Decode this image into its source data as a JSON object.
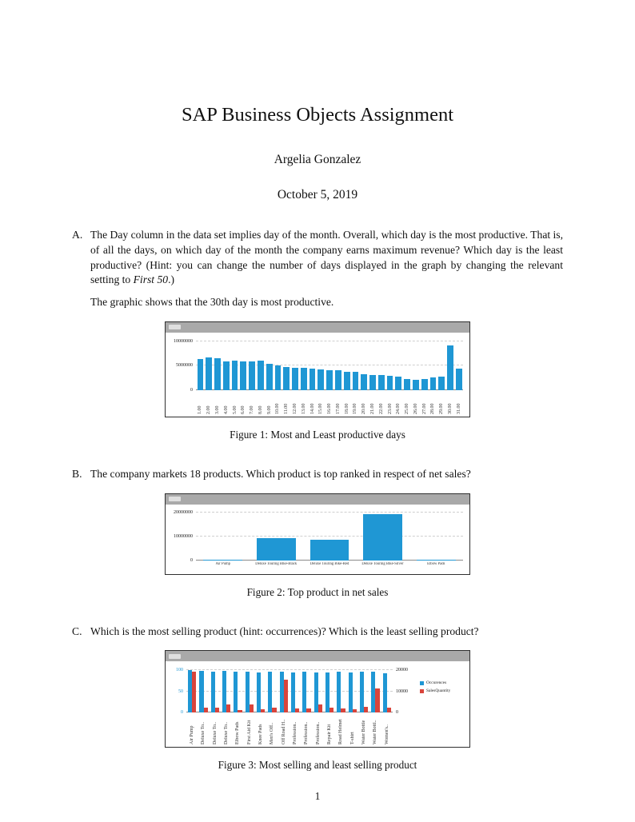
{
  "doc": {
    "title": "SAP Business Objects Assignment",
    "author": "Argelia Gonzalez",
    "date": "October 5, 2019",
    "page_number": "1"
  },
  "questions": {
    "a": {
      "label": "A.",
      "text_main": "The Day column in the data set implies day of the month. Overall, which day is the most productive. That is, of all the days, on which day of the month the company earns maximum revenue? Which day is the least productive? (Hint: you can change the number of days displayed in the graph by changing the relevant setting to ",
      "text_italic": "First 50",
      "text_end": ".)",
      "note": "The graphic shows that the 30th day is most productive."
    },
    "b": {
      "label": "B.",
      "text": "The company markets 18 products. Which product is top ranked in respect of net sales?"
    },
    "c": {
      "label": "C.",
      "text": "Which is the most selling product (hint: occurrences)? Which is the least selling product?"
    }
  },
  "figures": {
    "fig1_caption": "Figure 1: Most and Least productive days",
    "fig2_caption": "Figure 2: Top product in net sales",
    "fig3_caption": "Figure 3: Most selling and least selling product"
  },
  "colors": {
    "bar_blue": "#1f97d4",
    "bar_red": "#d9443b",
    "chart_header_gray": "#a9a9a9"
  },
  "chart_data": [
    {
      "type": "bar",
      "categories": [
        "1.00",
        "2.00",
        "3.00",
        "4.00",
        "5.00",
        "6.00",
        "7.00",
        "8.00",
        "9.00",
        "10.00",
        "11.00",
        "12.00",
        "13.00",
        "14.00",
        "15.00",
        "16.00",
        "17.00",
        "18.00",
        "19.00",
        "20.00",
        "21.00",
        "22.00",
        "23.00",
        "24.00",
        "25.00",
        "26.00",
        "27.00",
        "28.00",
        "29.00",
        "30.00",
        "31.00"
      ],
      "values": [
        6400000,
        6700000,
        6600000,
        5900000,
        6000000,
        5900000,
        5800000,
        6000000,
        5400000,
        5100000,
        4700000,
        4600000,
        4500000,
        4400000,
        4300000,
        4000000,
        4000000,
        3800000,
        3700000,
        3300000,
        3100000,
        3000000,
        2900000,
        2700000,
        2300000,
        2100000,
        2300000,
        2600000,
        2700000,
        9100000,
        4400000
      ],
      "yticks": [
        0,
        5000000,
        10000000
      ],
      "ylim": [
        0,
        10500000
      ],
      "grid": true,
      "legend_position": "none"
    },
    {
      "type": "bar",
      "categories": [
        "Air Pump",
        "Deluxe Touring Bike-Black",
        "Deluxe Touring Bike-Red",
        "Deluxe Touring Bike-Silver",
        "Elbow Pads"
      ],
      "values": [
        250000,
        9200000,
        8600000,
        19600000,
        180000
      ],
      "yticks": [
        0,
        10000000,
        20000000
      ],
      "ylim": [
        0,
        21000000
      ],
      "grid": true,
      "legend_position": "none"
    },
    {
      "type": "bar",
      "categories": [
        "Air Pump",
        "Deluxe To..",
        "Deluxe To..",
        "Deluxe To..",
        "Elbow Pads",
        "First Aid Kit",
        "Knee Pads",
        "Men's Off..",
        "Off Road H..",
        "Profession..",
        "Profession..",
        "Profession..",
        "Repair Kit",
        "Road Helmet",
        "T-shirt",
        "Water Bottle",
        "Water Bottl..",
        "Women's.."
      ],
      "series": [
        {
          "name": "Occurences",
          "axis": "left",
          "values": [
            100,
            98,
            97,
            98,
            96,
            97,
            95,
            97,
            96,
            95,
            96,
            95,
            94,
            96,
            95,
            97,
            96,
            93
          ]
        },
        {
          "name": "SalesQuantity",
          "axis": "right",
          "values": [
            19200,
            2500,
            2300,
            3900,
            1300,
            3700,
            1600,
            2400,
            15300,
            2100,
            1900,
            3900,
            2200,
            1900,
            1700,
            2700,
            11200,
            2300
          ]
        }
      ],
      "left_yticks": [
        0,
        50,
        100
      ],
      "left_ylim": [
        0,
        105
      ],
      "right_yticks": [
        0,
        10000,
        20000
      ],
      "right_ylim": [
        0,
        21000
      ],
      "grid": true,
      "legend_position": "right"
    }
  ]
}
